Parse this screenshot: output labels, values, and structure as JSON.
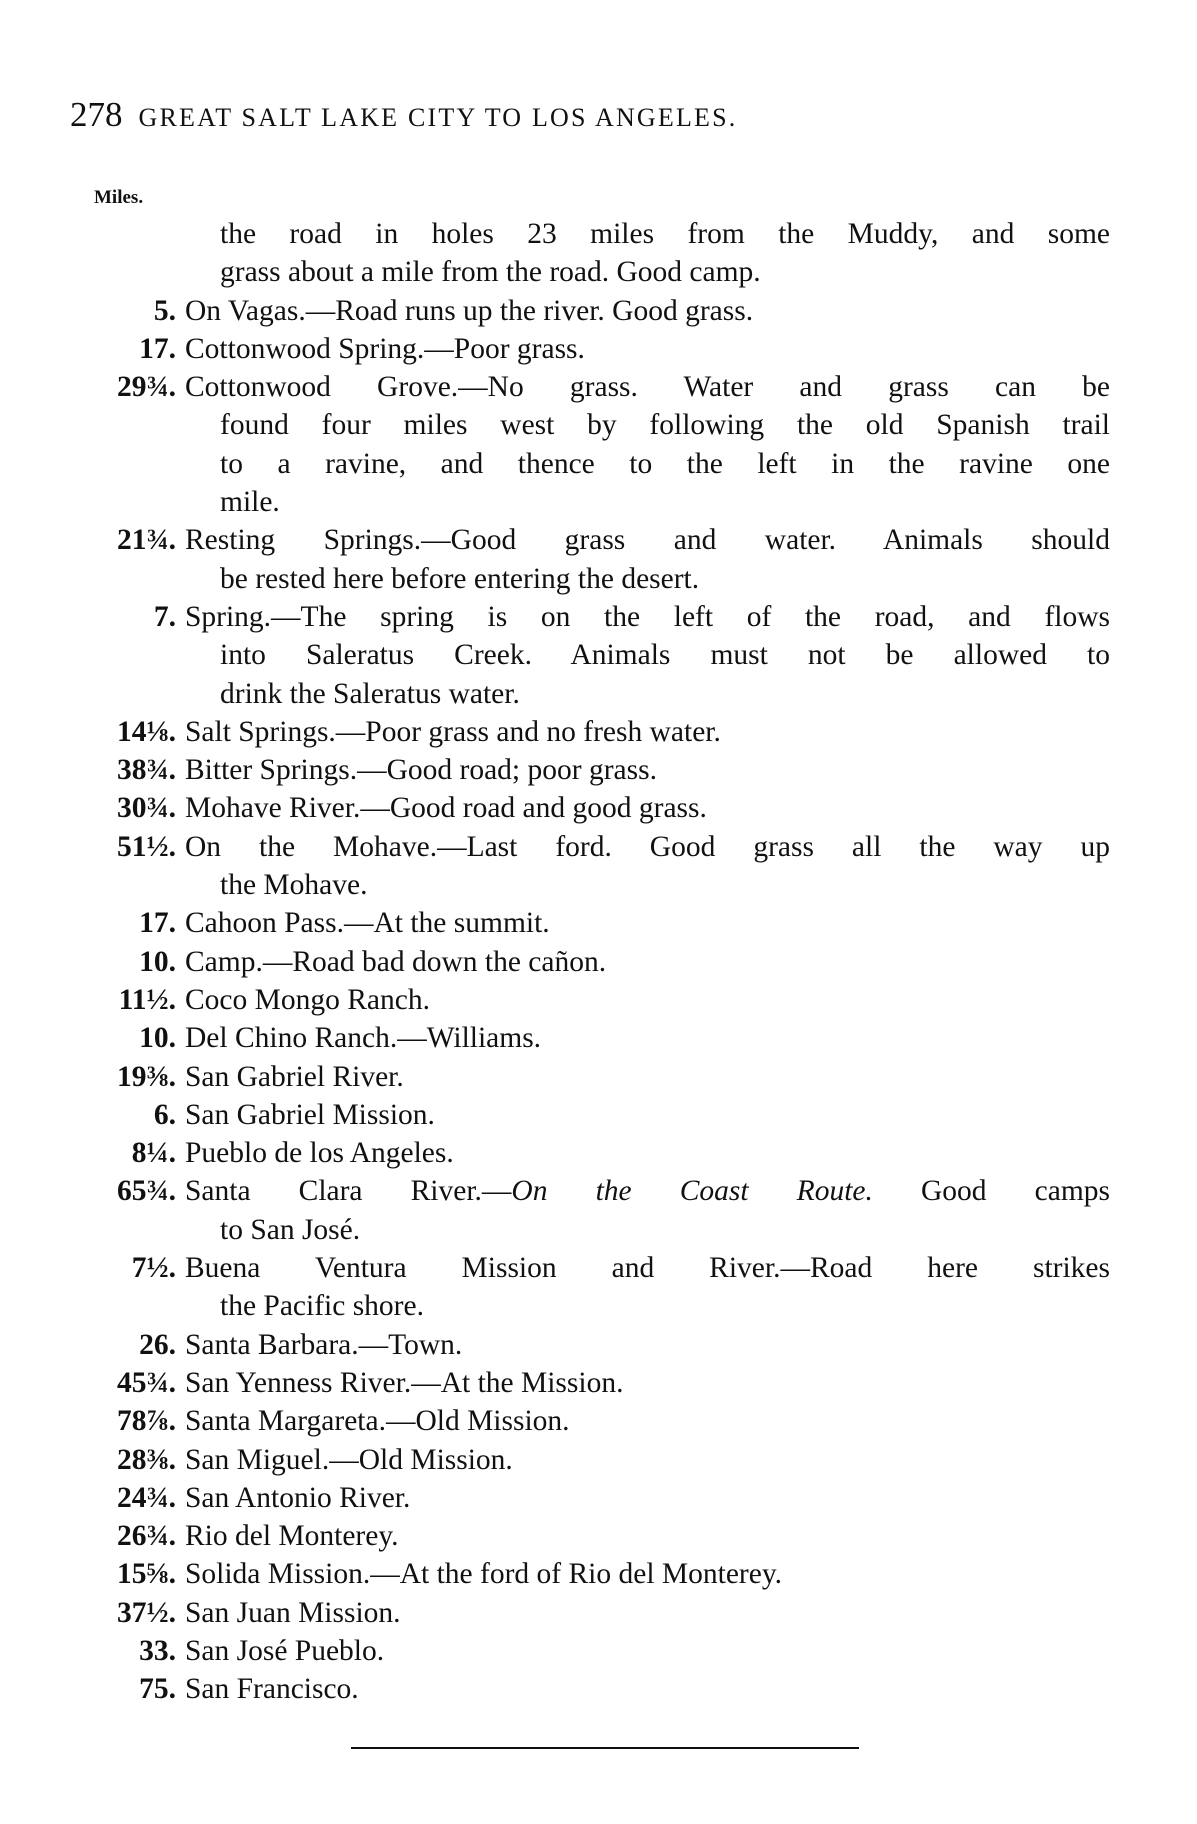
{
  "header": {
    "page_number": "278",
    "title": "GREAT SALT LAKE CITY TO LOS ANGELES."
  },
  "column_label": "Miles.",
  "continuation": [
    "the road in holes 23 miles from the Muddy, and some",
    "grass about a mile from the road.  Good camp."
  ],
  "entries": [
    {
      "miles": "5.",
      "lines": [
        "On Vagas.—Road runs up the river.  Good grass."
      ]
    },
    {
      "miles": "17.",
      "lines": [
        "Cottonwood Spring.—Poor grass."
      ]
    },
    {
      "miles": "29¾.",
      "lines": [
        "Cottonwood Grove.—No grass.  Water and grass can be",
        "found four miles west by following the old Spanish trail",
        "to a ravine, and thence to the left in the ravine one",
        "mile."
      ]
    },
    {
      "miles": "21¾.",
      "lines": [
        "Resting Springs.—Good grass and water.  Animals should",
        "be rested here before entering the desert."
      ]
    },
    {
      "miles": "7.",
      "lines": [
        "Spring.—The spring is on the left of the road, and flows",
        "into Saleratus Creek.  Animals must not be allowed to",
        "drink the Saleratus water."
      ]
    },
    {
      "miles": "14⅛.",
      "lines": [
        "Salt Springs.—Poor grass and no fresh water."
      ]
    },
    {
      "miles": "38¾.",
      "lines": [
        "Bitter Springs.—Good road; poor grass."
      ]
    },
    {
      "miles": "30¾.",
      "lines": [
        "Mohave River.—Good road and good grass."
      ]
    },
    {
      "miles": "51½.",
      "lines": [
        "On the Mohave.—Last ford.  Good grass all the way up",
        "the Mohave."
      ]
    },
    {
      "miles": "17.",
      "lines": [
        "Cahoon Pass.—At the summit."
      ]
    },
    {
      "miles": "10.",
      "lines": [
        "Camp.—Road bad down the cañon."
      ]
    },
    {
      "miles": "11½.",
      "lines": [
        "Coco Mongo Ranch."
      ]
    },
    {
      "miles": "10.",
      "lines": [
        "Del Chino Ranch.—Williams."
      ]
    },
    {
      "miles": "19⅜.",
      "lines": [
        "San Gabriel River."
      ]
    },
    {
      "miles": "6.",
      "lines": [
        "San Gabriel Mission."
      ]
    },
    {
      "miles": "8¼.",
      "lines": [
        "Pueblo de los Angeles."
      ]
    },
    {
      "miles": "65¾.",
      "lines": [
        {
          "pre": "Santa Clara River.—",
          "italic": "On the Coast Route.",
          "post": "  Good camps"
        },
        "to San José."
      ]
    },
    {
      "miles": "7½.",
      "lines": [
        "Buena Ventura Mission and River.—Road here strikes",
        "the Pacific shore."
      ]
    },
    {
      "miles": "26.",
      "lines": [
        "Santa Barbara.—Town."
      ]
    },
    {
      "miles": "45¾.",
      "lines": [
        "San Yenness River.—At the Mission."
      ]
    },
    {
      "miles": "78⅞.",
      "lines": [
        "Santa Margareta.—Old Mission."
      ]
    },
    {
      "miles": "28⅜.",
      "lines": [
        "San Miguel.—Old Mission."
      ]
    },
    {
      "miles": "24¾.",
      "lines": [
        "San Antonio River."
      ]
    },
    {
      "miles": "26¾.",
      "lines": [
        "Rio del Monterey."
      ]
    },
    {
      "miles": "15⅝.",
      "lines": [
        "Solida Mission.—At the ford of Rio del Monterey."
      ]
    },
    {
      "miles": "37½.",
      "lines": [
        "San Juan Mission."
      ]
    },
    {
      "miles": "33.",
      "lines": [
        "San José Pueblo."
      ]
    },
    {
      "miles": "75.",
      "lines": [
        "San Francisco."
      ]
    }
  ]
}
